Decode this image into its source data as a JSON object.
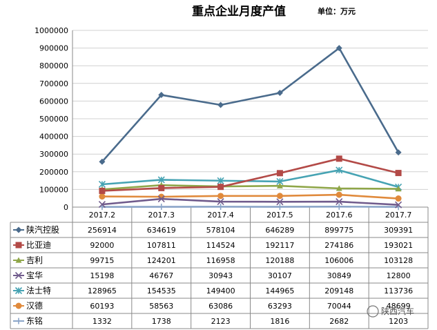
{
  "chart_data": {
    "type": "line",
    "title": "重点企业月度产值",
    "unit_label": "单位：万元",
    "categories": [
      "2017.2",
      "2017.3",
      "2017.4",
      "2017.5",
      "2017.6",
      "2017.7"
    ],
    "ylim": [
      0,
      1000000
    ],
    "yticks": [
      "0",
      "100000",
      "200000",
      "300000",
      "400000",
      "500000",
      "600000",
      "700000",
      "800000",
      "900000",
      "1000000"
    ],
    "grid": true,
    "legend": "data-table",
    "series": [
      {
        "name": "陕汽控股",
        "color": "#4a6b8c",
        "marker": "diamond",
        "values": [
          256914,
          634619,
          578104,
          646289,
          899775,
          309391
        ]
      },
      {
        "name": "比亚迪",
        "color": "#b34a47",
        "marker": "square",
        "values": [
          92000,
          107811,
          114524,
          192117,
          274186,
          193021
        ]
      },
      {
        "name": "吉利",
        "color": "#8fa648",
        "marker": "triangle",
        "values": [
          99715,
          124201,
          116958,
          120188,
          106006,
          103128
        ]
      },
      {
        "name": "宝华",
        "color": "#705b8c",
        "marker": "x",
        "values": [
          15198,
          46767,
          30943,
          30107,
          30849,
          12800
        ]
      },
      {
        "name": "法士特",
        "color": "#46a3b3",
        "marker": "star",
        "values": [
          128965,
          154535,
          149400,
          144965,
          209148,
          113736
        ]
      },
      {
        "name": "汉德",
        "color": "#e08a3c",
        "marker": "circle",
        "values": [
          60193,
          58563,
          63086,
          63293,
          70044,
          48699
        ]
      },
      {
        "name": "东铭",
        "color": "#8aa4c8",
        "marker": "plus",
        "values": [
          1332,
          1738,
          2123,
          1816,
          2682,
          1203
        ]
      }
    ]
  },
  "watermark": "陕西汽车"
}
